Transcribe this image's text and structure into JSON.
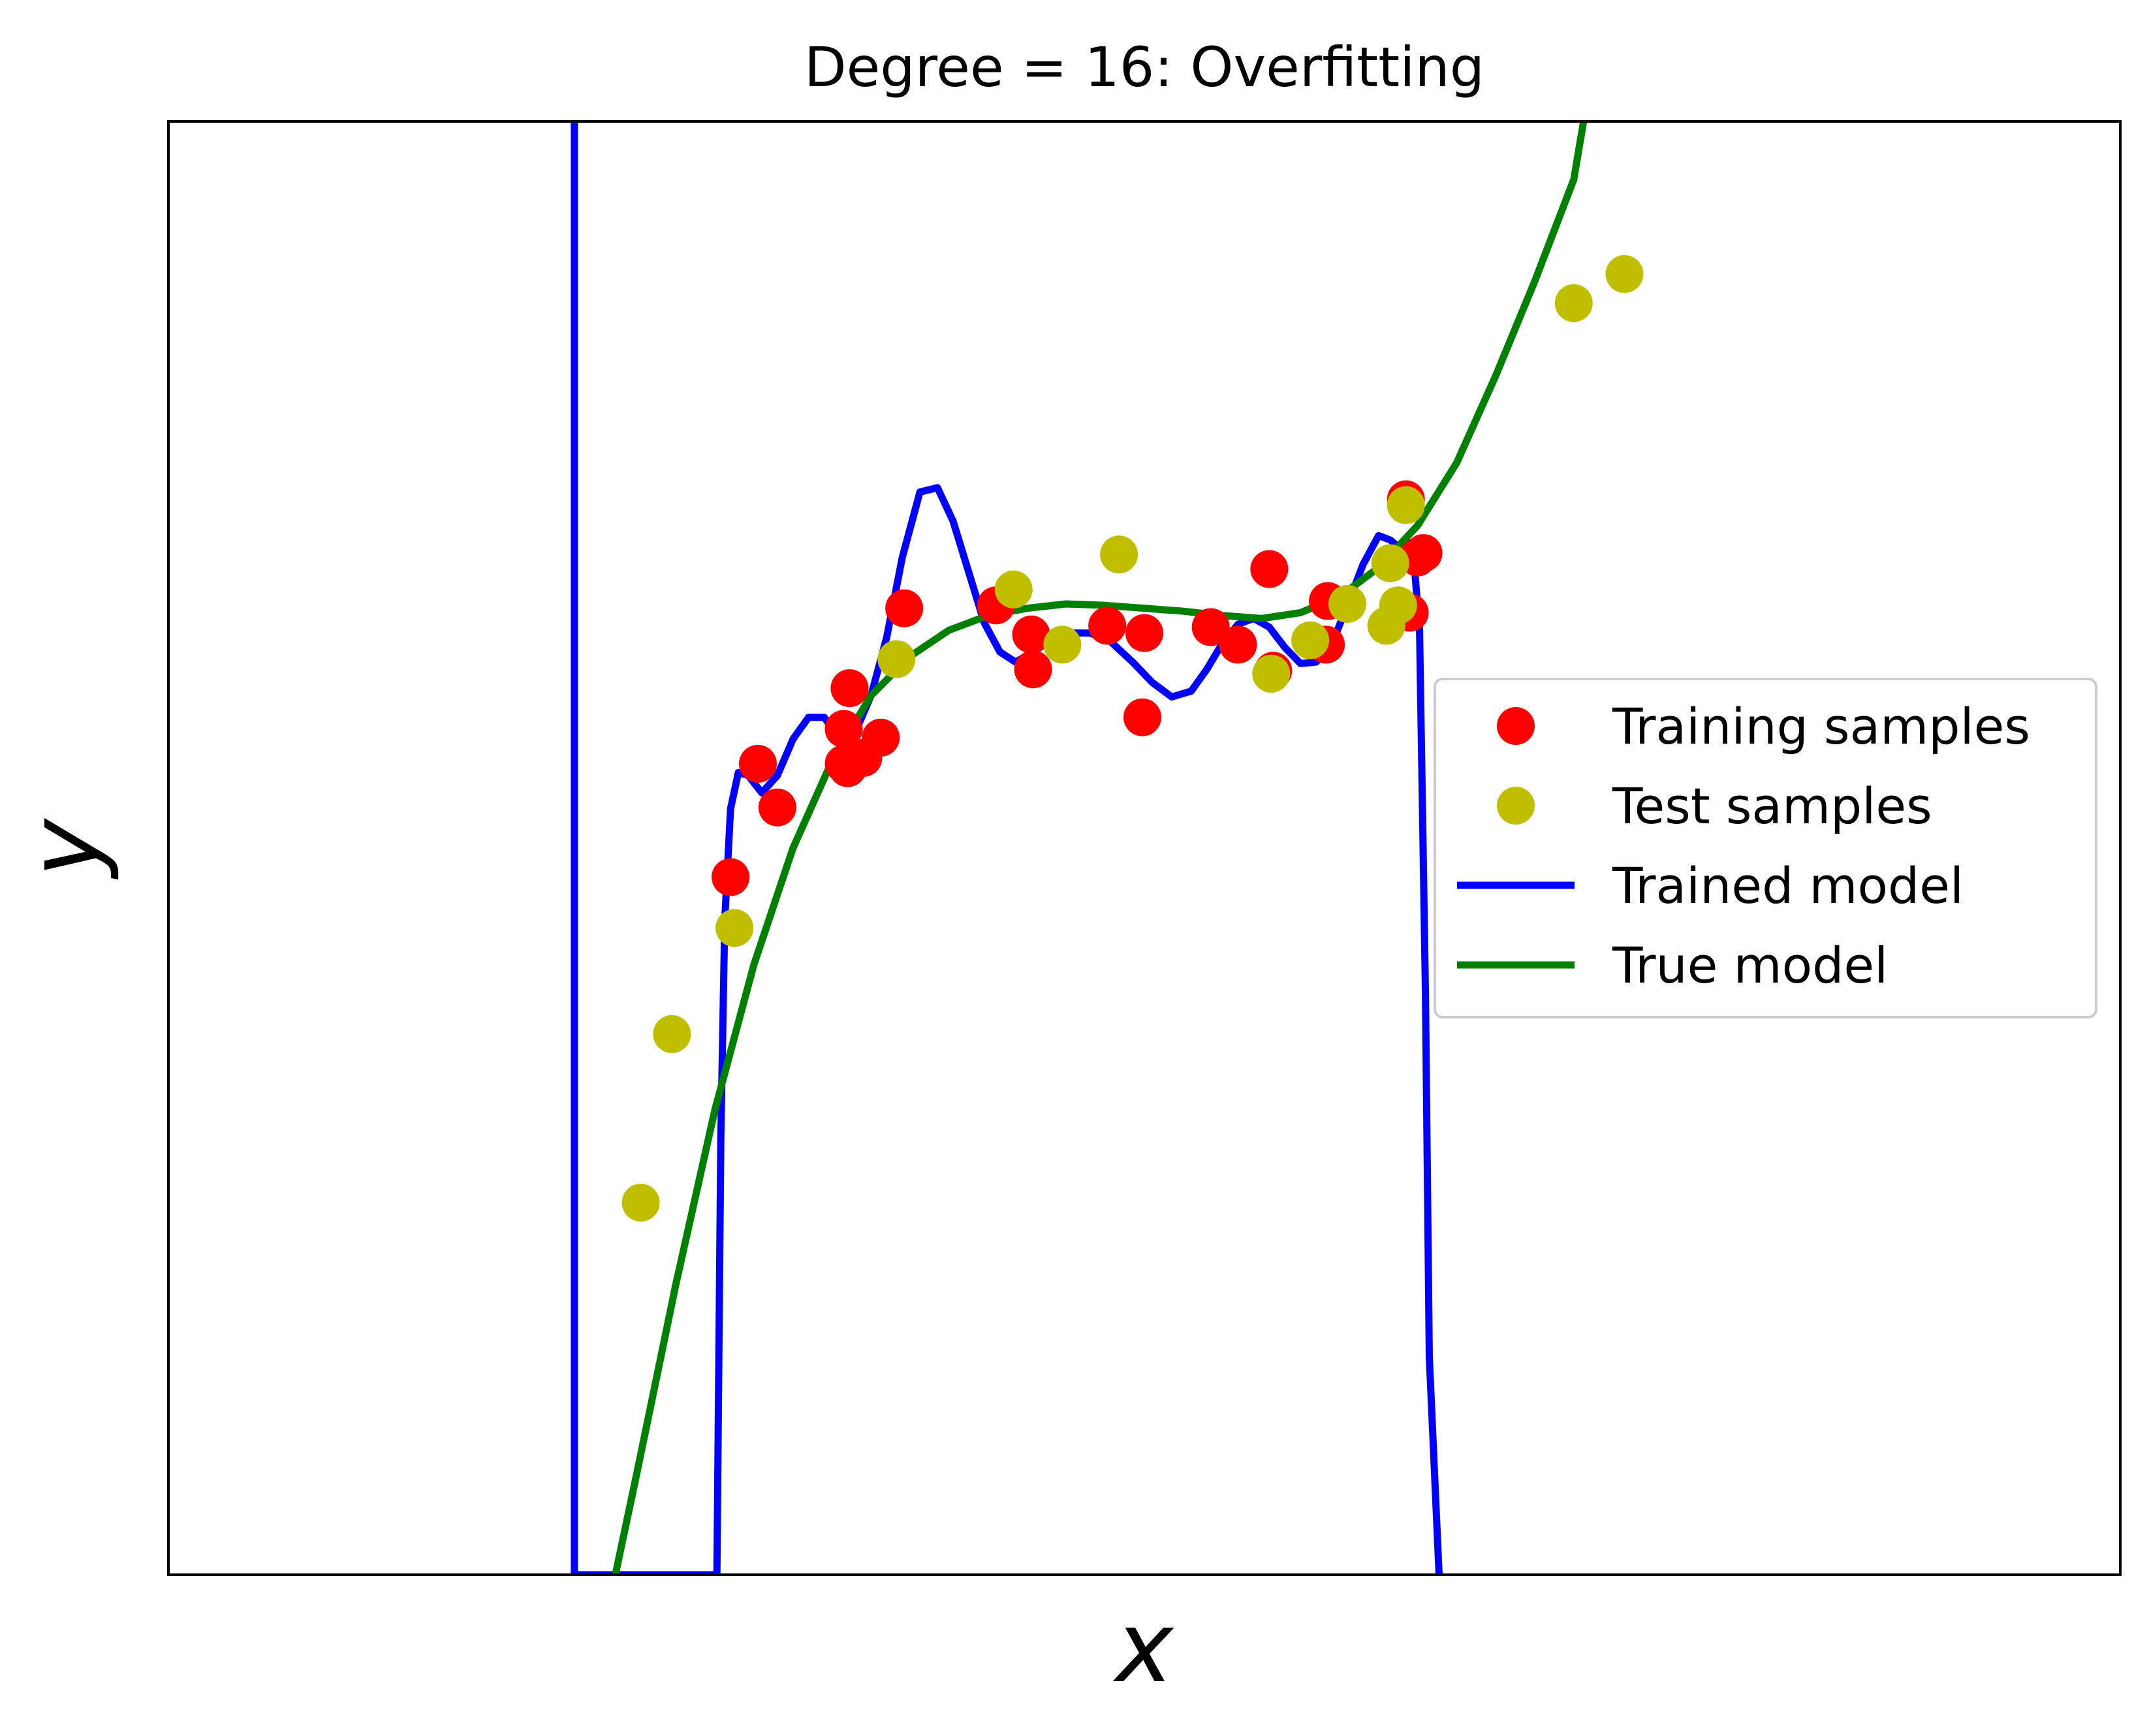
{
  "chart_data": {
    "type": "scatter",
    "title": "Degree = 16: Overfitting",
    "xlabel": "x",
    "ylabel": "y",
    "xlim": [
      0,
      1
    ],
    "ylim": [
      0,
      1
    ],
    "grid": false,
    "ticks_shown": false,
    "legend_position": "center-right",
    "series": [
      {
        "name": "Training samples",
        "kind": "scatter",
        "color": "#ff0000",
        "points": [
          [
            0.288,
            0.48
          ],
          [
            0.302,
            0.558
          ],
          [
            0.312,
            0.528
          ],
          [
            0.346,
            0.558
          ],
          [
            0.346,
            0.582
          ],
          [
            0.348,
            0.555
          ],
          [
            0.349,
            0.61
          ],
          [
            0.356,
            0.562
          ],
          [
            0.365,
            0.576
          ],
          [
            0.377,
            0.665
          ],
          [
            0.424,
            0.667
          ],
          [
            0.442,
            0.647
          ],
          [
            0.443,
            0.623
          ],
          [
            0.481,
            0.653
          ],
          [
            0.499,
            0.59
          ],
          [
            0.5,
            0.648
          ],
          [
            0.534,
            0.652
          ],
          [
            0.548,
            0.64
          ],
          [
            0.564,
            0.692
          ],
          [
            0.566,
            0.622
          ],
          [
            0.593,
            0.64
          ],
          [
            0.594,
            0.67
          ],
          [
            0.634,
            0.74
          ],
          [
            0.636,
            0.662
          ],
          [
            0.64,
            0.7
          ],
          [
            0.643,
            0.703
          ]
        ]
      },
      {
        "name": "Test samples",
        "kind": "scatter",
        "color": "#bfbf00",
        "points": [
          [
            0.242,
            0.256
          ],
          [
            0.258,
            0.372
          ],
          [
            0.29,
            0.445
          ],
          [
            0.373,
            0.63
          ],
          [
            0.433,
            0.678
          ],
          [
            0.458,
            0.64
          ],
          [
            0.487,
            0.702
          ],
          [
            0.565,
            0.62
          ],
          [
            0.585,
            0.643
          ],
          [
            0.604,
            0.668
          ],
          [
            0.624,
            0.653
          ],
          [
            0.626,
            0.696
          ],
          [
            0.63,
            0.667
          ],
          [
            0.634,
            0.736
          ],
          [
            0.72,
            0.875
          ],
          [
            0.746,
            0.895
          ]
        ]
      },
      {
        "name": "Trained model",
        "kind": "line",
        "color": "#0000ff",
        "points": [
          [
            0.208,
            1.0
          ],
          [
            0.208,
            0.0
          ],
          [
            0.281,
            0.0
          ],
          [
            0.283,
            0.3
          ],
          [
            0.285,
            0.45
          ],
          [
            0.288,
            0.527
          ],
          [
            0.292,
            0.552
          ],
          [
            0.297,
            0.55
          ],
          [
            0.304,
            0.538
          ],
          [
            0.312,
            0.55
          ],
          [
            0.32,
            0.575
          ],
          [
            0.328,
            0.59
          ],
          [
            0.336,
            0.59
          ],
          [
            0.344,
            0.575
          ],
          [
            0.352,
            0.58
          ],
          [
            0.36,
            0.605
          ],
          [
            0.368,
            0.645
          ],
          [
            0.376,
            0.7
          ],
          [
            0.385,
            0.745
          ],
          [
            0.394,
            0.748
          ],
          [
            0.402,
            0.725
          ],
          [
            0.41,
            0.69
          ],
          [
            0.418,
            0.655
          ],
          [
            0.426,
            0.635
          ],
          [
            0.434,
            0.628
          ],
          [
            0.442,
            0.634
          ],
          [
            0.452,
            0.643
          ],
          [
            0.462,
            0.648
          ],
          [
            0.472,
            0.648
          ],
          [
            0.482,
            0.643
          ],
          [
            0.494,
            0.628
          ],
          [
            0.504,
            0.614
          ],
          [
            0.514,
            0.604
          ],
          [
            0.524,
            0.608
          ],
          [
            0.532,
            0.623
          ],
          [
            0.54,
            0.641
          ],
          [
            0.548,
            0.654
          ],
          [
            0.556,
            0.658
          ],
          [
            0.564,
            0.652
          ],
          [
            0.572,
            0.638
          ],
          [
            0.58,
            0.627
          ],
          [
            0.588,
            0.628
          ],
          [
            0.596,
            0.64
          ],
          [
            0.604,
            0.667
          ],
          [
            0.612,
            0.695
          ],
          [
            0.62,
            0.715
          ],
          [
            0.626,
            0.712
          ],
          [
            0.632,
            0.705
          ],
          [
            0.636,
            0.71
          ],
          [
            0.638,
            0.7
          ],
          [
            0.641,
            0.65
          ],
          [
            0.644,
            0.4
          ],
          [
            0.646,
            0.15
          ],
          [
            0.651,
            0.0
          ]
        ]
      },
      {
        "name": "True model",
        "kind": "line",
        "color": "#008000",
        "points": [
          [
            0.229,
            0.0
          ],
          [
            0.24,
            0.07
          ],
          [
            0.26,
            0.2
          ],
          [
            0.28,
            0.32
          ],
          [
            0.3,
            0.42
          ],
          [
            0.32,
            0.5
          ],
          [
            0.34,
            0.56
          ],
          [
            0.36,
            0.605
          ],
          [
            0.38,
            0.632
          ],
          [
            0.4,
            0.65
          ],
          [
            0.42,
            0.66
          ],
          [
            0.44,
            0.665
          ],
          [
            0.46,
            0.668
          ],
          [
            0.48,
            0.667
          ],
          [
            0.5,
            0.665
          ],
          [
            0.52,
            0.663
          ],
          [
            0.54,
            0.66
          ],
          [
            0.56,
            0.658
          ],
          [
            0.58,
            0.662
          ],
          [
            0.6,
            0.673
          ],
          [
            0.62,
            0.693
          ],
          [
            0.64,
            0.722
          ],
          [
            0.66,
            0.765
          ],
          [
            0.68,
            0.825
          ],
          [
            0.7,
            0.89
          ],
          [
            0.72,
            0.96
          ],
          [
            0.725,
            1.0
          ]
        ]
      }
    ]
  }
}
